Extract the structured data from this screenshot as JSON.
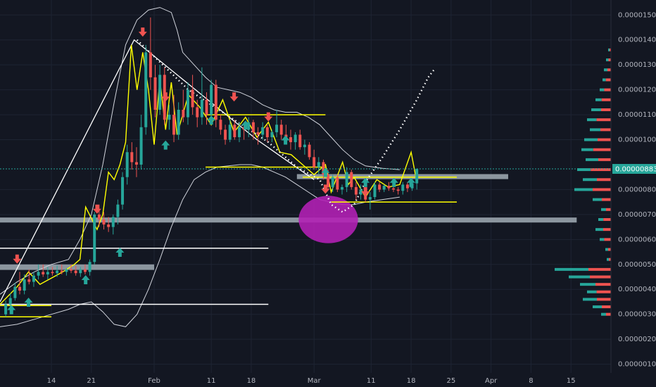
{
  "chart_data": {
    "type": "candlestick",
    "title": "",
    "xlabel": "",
    "ylabel": "",
    "x_tick_labels": [
      {
        "label": "14",
        "x": 14
      },
      {
        "label": "21",
        "x": 21
      },
      {
        "label": "Feb",
        "x": 32
      },
      {
        "label": "11",
        "x": 42
      },
      {
        "label": "18",
        "x": 49
      },
      {
        "label": "Mar",
        "x": 60
      },
      {
        "label": "11",
        "x": 70
      },
      {
        "label": "18",
        "x": 77
      },
      {
        "label": "25",
        "x": 84
      },
      {
        "label": "Apr",
        "x": 91
      },
      {
        "label": "8",
        "x": 98
      },
      {
        "label": "15",
        "x": 105
      }
    ],
    "y_tick_labels": [
      {
        "label": "0.00001500",
        "y": 1500
      },
      {
        "label": "0.00001400",
        "y": 1400
      },
      {
        "label": "0.00001300",
        "y": 1300
      },
      {
        "label": "0.00001200",
        "y": 1200
      },
      {
        "label": "0.00001100",
        "y": 1100
      },
      {
        "label": "0.00001000",
        "y": 1000
      },
      {
        "label": "0.00000800",
        "y": 800
      },
      {
        "label": "0.00000700",
        "y": 700
      },
      {
        "label": "0.00000600",
        "y": 600
      },
      {
        "label": "0.00000500",
        "y": 500
      },
      {
        "label": "0.00000400",
        "y": 400
      },
      {
        "label": "0.00000300",
        "y": 300
      },
      {
        "label": "0.00000200",
        "y": 200
      },
      {
        "label": "0.00000100",
        "y": 100
      }
    ],
    "current_price": {
      "label": "0.00000883",
      "y": 883
    },
    "ylim": [
      65,
      1560
    ],
    "xlim": [
      5,
      112
    ],
    "y_unit_note": "",
    "candles_y": [
      [
        300,
        355,
        290,
        340
      ],
      [
        340,
        385,
        330,
        365
      ],
      [
        365,
        425,
        355,
        410
      ],
      [
        410,
        470,
        380,
        395
      ],
      [
        395,
        460,
        380,
        440
      ],
      [
        440,
        480,
        420,
        430
      ],
      [
        430,
        470,
        410,
        455
      ],
      [
        455,
        500,
        440,
        470
      ],
      [
        470,
        500,
        450,
        460
      ],
      [
        460,
        490,
        440,
        470
      ],
      [
        470,
        490,
        455,
        465
      ],
      [
        465,
        495,
        450,
        475
      ],
      [
        475,
        500,
        460,
        470
      ],
      [
        470,
        485,
        455,
        480
      ],
      [
        480,
        500,
        465,
        475
      ],
      [
        475,
        495,
        455,
        465
      ],
      [
        465,
        490,
        450,
        480
      ],
      [
        480,
        500,
        460,
        470
      ],
      [
        470,
        520,
        455,
        510
      ],
      [
        510,
        710,
        500,
        700
      ],
      [
        700,
        740,
        650,
        680
      ],
      [
        680,
        710,
        640,
        660
      ],
      [
        660,
        690,
        630,
        650
      ],
      [
        650,
        700,
        620,
        690
      ],
      [
        690,
        760,
        660,
        740
      ],
      [
        740,
        870,
        720,
        850
      ],
      [
        850,
        980,
        820,
        950
      ],
      [
        950,
        990,
        880,
        910
      ],
      [
        910,
        970,
        850,
        900
      ],
      [
        900,
        1100,
        880,
        1050
      ],
      [
        1050,
        1380,
        1020,
        1350
      ],
      [
        1350,
        1490,
        1200,
        1250
      ],
      [
        1250,
        1300,
        1090,
        1120
      ],
      [
        1120,
        1300,
        1100,
        1260
      ],
      [
        1260,
        1290,
        1060,
        1080
      ],
      [
        1080,
        1140,
        1040,
        1100
      ],
      [
        1100,
        1180,
        990,
        1020
      ],
      [
        1020,
        1150,
        1000,
        1120
      ],
      [
        1120,
        1200,
        1070,
        1090
      ],
      [
        1090,
        1230,
        1060,
        1200
      ],
      [
        1200,
        1260,
        1100,
        1130
      ],
      [
        1130,
        1160,
        1050,
        1090
      ],
      [
        1090,
        1290,
        1060,
        1160
      ],
      [
        1160,
        1190,
        1060,
        1100
      ],
      [
        1100,
        1240,
        1070,
        1220
      ],
      [
        1220,
        1240,
        1050,
        1080
      ],
      [
        1080,
        1100,
        1020,
        1040
      ],
      [
        1040,
        1060,
        980,
        1000
      ],
      [
        1000,
        1080,
        990,
        1060
      ],
      [
        1060,
        1080,
        1000,
        1010
      ],
      [
        1010,
        1070,
        990,
        1050
      ],
      [
        1050,
        1070,
        1000,
        1040
      ],
      [
        1040,
        1090,
        1010,
        1070
      ],
      [
        1070,
        1080,
        1000,
        1030
      ],
      [
        1030,
        1050,
        980,
        1020
      ],
      [
        1020,
        1070,
        1000,
        1050
      ],
      [
        1050,
        1060,
        990,
        1010
      ],
      [
        1010,
        1040,
        990,
        1030
      ],
      [
        1030,
        1120,
        1010,
        1060
      ],
      [
        1060,
        1080,
        1000,
        1020
      ],
      [
        1020,
        1060,
        990,
        1010
      ],
      [
        1010,
        1040,
        960,
        990
      ],
      [
        990,
        1030,
        960,
        1020
      ],
      [
        1020,
        1040,
        960,
        970
      ],
      [
        970,
        1000,
        940,
        980
      ],
      [
        980,
        990,
        920,
        930
      ],
      [
        930,
        960,
        880,
        890
      ],
      [
        890,
        930,
        860,
        910
      ],
      [
        910,
        920,
        840,
        860
      ],
      [
        860,
        880,
        800,
        810
      ],
      [
        810,
        860,
        790,
        850
      ],
      [
        850,
        860,
        790,
        800
      ],
      [
        800,
        820,
        780,
        810
      ],
      [
        810,
        890,
        790,
        870
      ],
      [
        870,
        880,
        800,
        810
      ],
      [
        810,
        830,
        760,
        780
      ],
      [
        780,
        820,
        760,
        800
      ],
      [
        800,
        810,
        750,
        760
      ],
      [
        760,
        790,
        720,
        770
      ],
      [
        770,
        830,
        760,
        820
      ],
      [
        820,
        830,
        790,
        800
      ],
      [
        800,
        820,
        790,
        815
      ],
      [
        815,
        830,
        795,
        805
      ],
      [
        805,
        820,
        790,
        800
      ],
      [
        800,
        810,
        780,
        795
      ],
      [
        795,
        830,
        780,
        820
      ],
      [
        820,
        830,
        790,
        805
      ],
      [
        805,
        830,
        795,
        825
      ],
      [
        825,
        885,
        800,
        883
      ]
    ],
    "bollinger_upper": [
      [
        5,
        380
      ],
      [
        8,
        430
      ],
      [
        11,
        470
      ],
      [
        14,
        500
      ],
      [
        17,
        520
      ],
      [
        19,
        600
      ],
      [
        21,
        700
      ],
      [
        23,
        900
      ],
      [
        25,
        1150
      ],
      [
        27,
        1380
      ],
      [
        29,
        1480
      ],
      [
        31,
        1520
      ],
      [
        33,
        1530
      ],
      [
        35,
        1510
      ],
      [
        36,
        1440
      ],
      [
        37,
        1350
      ],
      [
        39,
        1300
      ],
      [
        41,
        1250
      ],
      [
        43,
        1210
      ],
      [
        45,
        1200
      ],
      [
        47,
        1190
      ],
      [
        49,
        1170
      ],
      [
        51,
        1140
      ],
      [
        53,
        1120
      ],
      [
        55,
        1110
      ],
      [
        57,
        1110
      ],
      [
        59,
        1090
      ],
      [
        61,
        1060
      ],
      [
        63,
        1010
      ],
      [
        65,
        960
      ],
      [
        67,
        920
      ],
      [
        69,
        895
      ],
      [
        72,
        885
      ],
      [
        75,
        880
      ]
    ],
    "bollinger_lower": [
      [
        5,
        250
      ],
      [
        8,
        260
      ],
      [
        11,
        280
      ],
      [
        14,
        300
      ],
      [
        17,
        320
      ],
      [
        19,
        340
      ],
      [
        21,
        350
      ],
      [
        23,
        310
      ],
      [
        25,
        260
      ],
      [
        27,
        250
      ],
      [
        29,
        300
      ],
      [
        31,
        400
      ],
      [
        33,
        520
      ],
      [
        35,
        650
      ],
      [
        37,
        760
      ],
      [
        39,
        840
      ],
      [
        41,
        870
      ],
      [
        43,
        890
      ],
      [
        45,
        895
      ],
      [
        47,
        900
      ],
      [
        49,
        900
      ],
      [
        51,
        890
      ],
      [
        53,
        870
      ],
      [
        55,
        850
      ],
      [
        57,
        820
      ],
      [
        59,
        790
      ],
      [
        61,
        760
      ],
      [
        63,
        750
      ],
      [
        65,
        740
      ],
      [
        67,
        740
      ],
      [
        69,
        750
      ],
      [
        72,
        760
      ],
      [
        75,
        770
      ]
    ],
    "annotation_lines": [
      {
        "kind": "trend",
        "color": "#ffffff",
        "points": [
          [
            5,
            350
          ],
          [
            28.5,
            1400
          ],
          [
            50,
            1000
          ],
          [
            60,
            840
          ]
        ]
      },
      {
        "kind": "hline",
        "color": "#ffffff",
        "from": 5,
        "to": 52,
        "y": 565
      },
      {
        "kind": "hline",
        "color": "#ffffff",
        "from": 5,
        "to": 52,
        "y": 340
      },
      {
        "kind": "hline",
        "color": "#ffff00",
        "from": 5,
        "to": 14,
        "y": 335
      },
      {
        "kind": "hline",
        "color": "#ffff00",
        "from": 5,
        "to": 14,
        "y": 290
      },
      {
        "kind": "hline",
        "color": "#ffff00",
        "from": 41,
        "to": 62,
        "y": 1100
      },
      {
        "kind": "hline",
        "color": "#ffff00",
        "from": 41,
        "to": 62,
        "y": 890
      },
      {
        "kind": "hline",
        "color": "#ffff00",
        "from": 58,
        "to": 85,
        "y": 850
      },
      {
        "kind": "hline",
        "color": "#ffff00",
        "from": 63,
        "to": 85,
        "y": 750
      },
      {
        "kind": "zigzag",
        "color": "#ffff00",
        "points": [
          [
            5,
            340
          ],
          [
            8,
            410
          ],
          [
            10,
            470
          ],
          [
            12,
            420
          ],
          [
            16,
            470
          ],
          [
            18,
            500
          ],
          [
            19,
            520
          ],
          [
            20,
            730
          ],
          [
            22,
            640
          ],
          [
            23,
            700
          ],
          [
            24,
            870
          ],
          [
            25,
            840
          ],
          [
            26,
            900
          ],
          [
            27,
            990
          ],
          [
            28,
            1380
          ],
          [
            29,
            1200
          ],
          [
            30,
            1350
          ],
          [
            31,
            1200
          ],
          [
            32,
            980
          ],
          [
            33,
            1240
          ],
          [
            34,
            1040
          ],
          [
            35,
            1230
          ],
          [
            36,
            1020
          ],
          [
            38,
            1180
          ],
          [
            40,
            1130
          ],
          [
            42,
            1060
          ],
          [
            44,
            1160
          ],
          [
            46,
            1030
          ],
          [
            48,
            1090
          ],
          [
            50,
            1010
          ],
          [
            52,
            1070
          ],
          [
            54,
            950
          ],
          [
            56,
            940
          ],
          [
            58,
            900
          ],
          [
            60,
            860
          ],
          [
            62,
            900
          ],
          [
            63,
            790
          ],
          [
            65,
            910
          ],
          [
            66,
            820
          ],
          [
            67,
            850
          ],
          [
            69,
            770
          ],
          [
            71,
            840
          ],
          [
            73,
            810
          ],
          [
            75,
            820
          ],
          [
            77,
            950
          ],
          [
            78,
            830
          ]
        ]
      },
      {
        "kind": "dotted",
        "color": "#ffffff",
        "points": [
          [
            29,
            1400
          ],
          [
            38,
            1200
          ],
          [
            46,
            1080
          ],
          [
            52,
            990
          ],
          [
            57,
            890
          ],
          [
            61,
            840
          ],
          [
            63,
            740
          ],
          [
            65,
            710
          ],
          [
            67,
            740
          ],
          [
            69,
            830
          ],
          [
            72,
            930
          ],
          [
            75,
            1040
          ],
          [
            78,
            1160
          ],
          [
            80,
            1250
          ],
          [
            81,
            1280
          ]
        ]
      }
    ],
    "supply_zones": [
      {
        "from": 5,
        "to": 32,
        "y_top": 500,
        "y_bottom": 478
      },
      {
        "from": 5,
        "to": 106,
        "y_top": 688,
        "y_bottom": 668
      },
      {
        "from": 57,
        "to": 94,
        "y_top": 862,
        "y_bottom": 842
      }
    ],
    "highlight_circle": {
      "x": 62.5,
      "y": 680,
      "r_x": 5.2,
      "r_y": 95,
      "color": "#b120b4"
    },
    "signals_up": [
      [
        7,
        320
      ],
      [
        10,
        350
      ],
      [
        20,
        440
      ],
      [
        26,
        550
      ],
      [
        34,
        980
      ],
      [
        42,
        1080
      ],
      [
        48,
        1060
      ],
      [
        55,
        1000
      ],
      [
        62,
        870
      ],
      [
        69,
        830
      ],
      [
        74,
        830
      ],
      [
        77,
        830
      ]
    ],
    "signals_down": [
      [
        8,
        520
      ],
      [
        22,
        720
      ],
      [
        30,
        1430
      ],
      [
        34,
        1170
      ],
      [
        46,
        1170
      ],
      [
        52,
        1090
      ],
      [
        62,
        800
      ],
      [
        69,
        790
      ]
    ],
    "volume_profile": [
      {
        "y": 1360,
        "w": 4,
        "up": 0.5
      },
      {
        "y": 1320,
        "w": 7,
        "up": 0.5
      },
      {
        "y": 1280,
        "w": 10,
        "up": 0.5
      },
      {
        "y": 1240,
        "w": 12,
        "up": 0.4
      },
      {
        "y": 1200,
        "w": 16,
        "up": 0.4
      },
      {
        "y": 1160,
        "w": 22,
        "up": 0.4
      },
      {
        "y": 1120,
        "w": 28,
        "up": 0.5
      },
      {
        "y": 1080,
        "w": 34,
        "up": 0.4
      },
      {
        "y": 1040,
        "w": 30,
        "up": 0.5
      },
      {
        "y": 1000,
        "w": 38,
        "up": 0.5
      },
      {
        "y": 960,
        "w": 42,
        "up": 0.4
      },
      {
        "y": 920,
        "w": 36,
        "up": 0.5
      },
      {
        "y": 880,
        "w": 48,
        "up": 0.4
      },
      {
        "y": 840,
        "w": 40,
        "up": 0.5
      },
      {
        "y": 800,
        "w": 52,
        "up": 0.5
      },
      {
        "y": 760,
        "w": 26,
        "up": 0.5
      },
      {
        "y": 720,
        "w": 14,
        "up": 0.5
      },
      {
        "y": 680,
        "w": 18,
        "up": 0.4
      },
      {
        "y": 640,
        "w": 22,
        "up": 0.5
      },
      {
        "y": 600,
        "w": 16,
        "up": 0.4
      },
      {
        "y": 560,
        "w": 8,
        "up": 0.5
      },
      {
        "y": 520,
        "w": 6,
        "up": 0.5
      },
      {
        "y": 480,
        "w": 80,
        "up": 0.6
      },
      {
        "y": 450,
        "w": 60,
        "up": 0.5
      },
      {
        "y": 420,
        "w": 44,
        "up": 0.5
      },
      {
        "y": 390,
        "w": 34,
        "up": 0.4
      },
      {
        "y": 360,
        "w": 40,
        "up": 0.5
      },
      {
        "y": 330,
        "w": 26,
        "up": 0.5
      },
      {
        "y": 300,
        "w": 14,
        "up": 0.5
      }
    ],
    "colors": {
      "background": "#131722",
      "grid": "#1e2433",
      "bull": "#26a69a",
      "bear": "#ef5350",
      "bands": "#d1d4dc",
      "zone": "#9aa4ad",
      "price_tag": "#26a69a",
      "axis_text": "#b2b5be"
    },
    "grid": true,
    "legend": "none"
  }
}
